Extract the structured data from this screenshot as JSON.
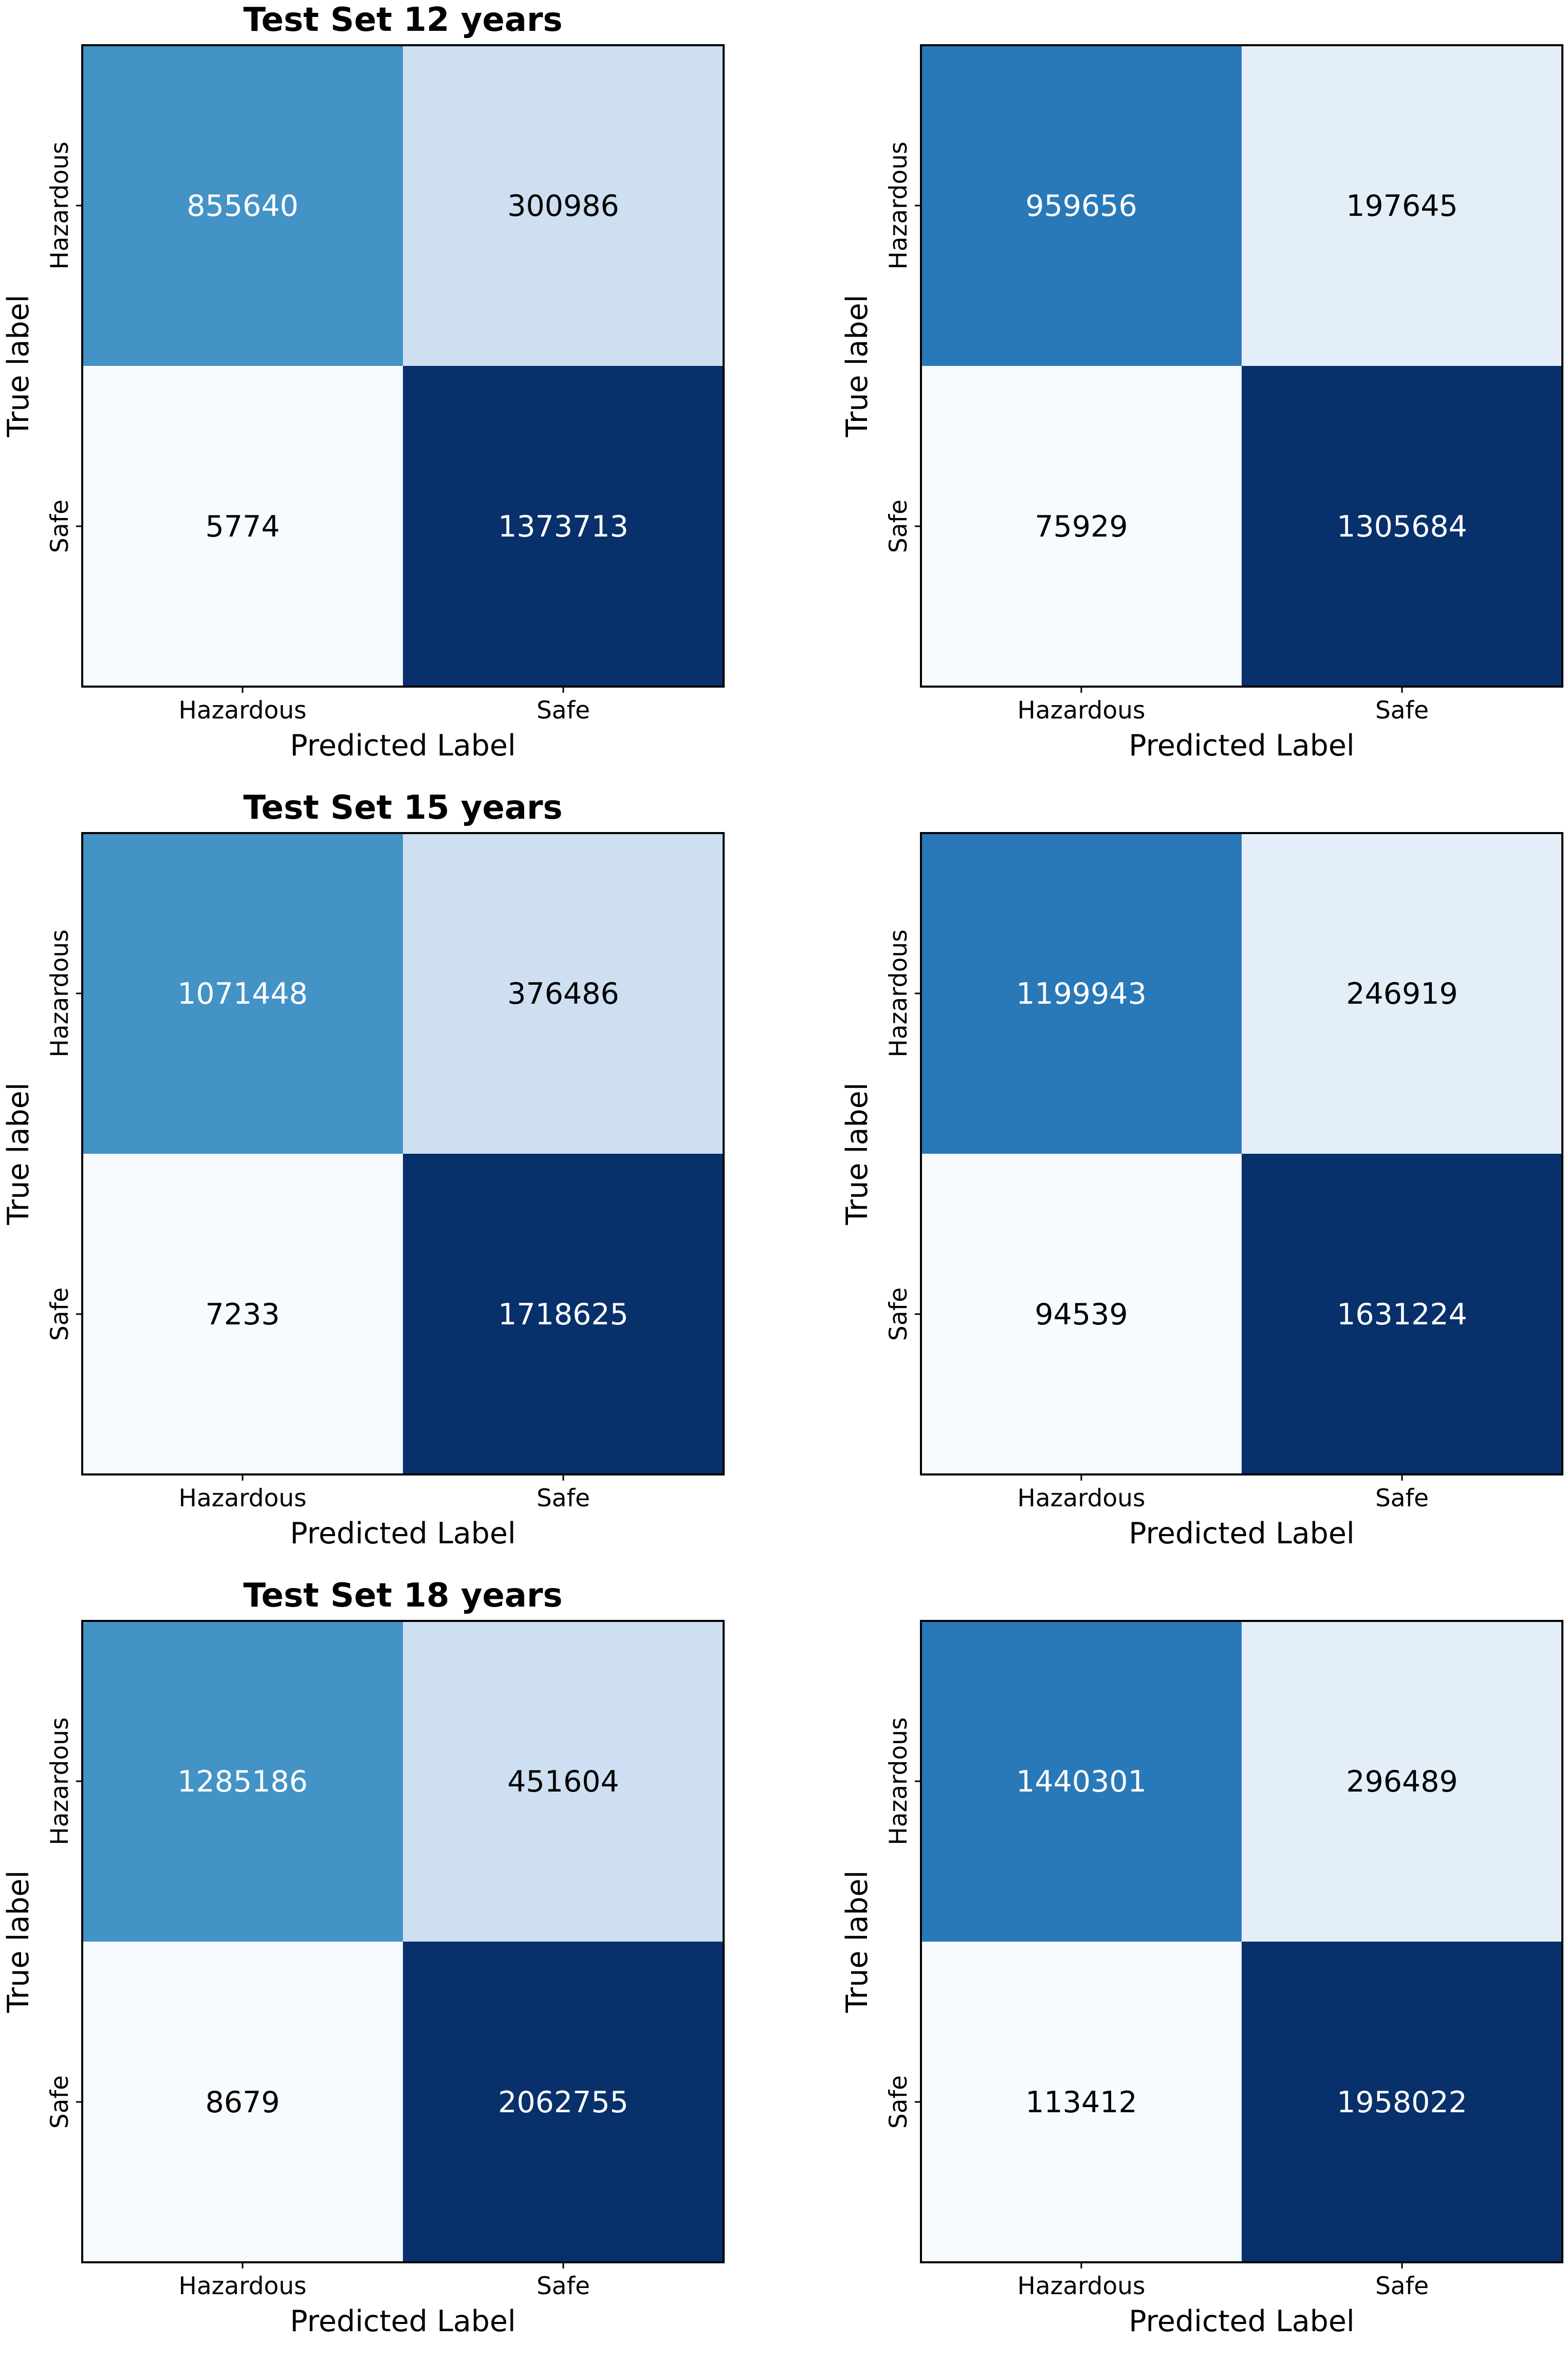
{
  "figure": {
    "colormap": "Blues",
    "dark_text_color": "#000000",
    "light_text_color": "#ffffff",
    "frame_color": "#000000"
  },
  "chart_data": [
    {
      "type": "heatmap",
      "title": "Test Set 12 years",
      "xlabel": "Predicted Label",
      "ylabel": "True label",
      "x_categories": [
        "Hazardous",
        "Safe"
      ],
      "y_categories": [
        "Hazardous",
        "Safe"
      ],
      "values": [
        [
          855640,
          300986
        ],
        [
          5774,
          1373713
        ]
      ]
    },
    {
      "type": "heatmap",
      "title": "",
      "xlabel": "Predicted Label",
      "ylabel": "True label",
      "x_categories": [
        "Hazardous",
        "Safe"
      ],
      "y_categories": [
        "Hazardous",
        "Safe"
      ],
      "values": [
        [
          959656,
          197645
        ],
        [
          75929,
          1305684
        ]
      ]
    },
    {
      "type": "heatmap",
      "title": "Test Set 15 years",
      "xlabel": "Predicted Label",
      "ylabel": "True label",
      "x_categories": [
        "Hazardous",
        "Safe"
      ],
      "y_categories": [
        "Hazardous",
        "Safe"
      ],
      "values": [
        [
          1071448,
          376486
        ],
        [
          7233,
          1718625
        ]
      ]
    },
    {
      "type": "heatmap",
      "title": "",
      "xlabel": "Predicted Label",
      "ylabel": "True label",
      "x_categories": [
        "Hazardous",
        "Safe"
      ],
      "y_categories": [
        "Hazardous",
        "Safe"
      ],
      "values": [
        [
          1199943,
          246919
        ],
        [
          94539,
          1631224
        ]
      ]
    },
    {
      "type": "heatmap",
      "title": "Test Set 18 years",
      "xlabel": "Predicted Label",
      "ylabel": "True label",
      "x_categories": [
        "Hazardous",
        "Safe"
      ],
      "y_categories": [
        "Hazardous",
        "Safe"
      ],
      "values": [
        [
          1285186,
          451604
        ],
        [
          8679,
          2062755
        ]
      ]
    },
    {
      "type": "heatmap",
      "title": "",
      "xlabel": "Predicted Label",
      "ylabel": "True label",
      "x_categories": [
        "Hazardous",
        "Safe"
      ],
      "y_categories": [
        "Hazardous",
        "Safe"
      ],
      "values": [
        [
          1440301,
          296489
        ],
        [
          113412,
          1958022
        ]
      ]
    }
  ]
}
